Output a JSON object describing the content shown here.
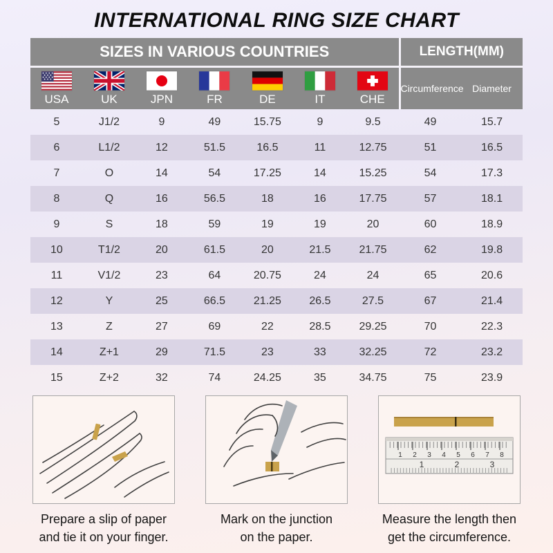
{
  "page": {
    "title": "INTERNATIONAL RING SIZE CHART"
  },
  "colors": {
    "header_bg": "#8a8a8a",
    "alt_row_bg": "#dad4e5",
    "paper_slip_gold": "#c9a24b"
  },
  "table": {
    "section_headers": {
      "sizes": "SIZES IN VARIOUS COUNTRIES",
      "length": "LENGTH(MM)"
    },
    "countries": [
      {
        "code": "USA",
        "flag_icon": "usa-flag-icon"
      },
      {
        "code": "UK",
        "flag_icon": "uk-flag-icon"
      },
      {
        "code": "JPN",
        "flag_icon": "japan-flag-icon"
      },
      {
        "code": "FR",
        "flag_icon": "france-flag-icon"
      },
      {
        "code": "DE",
        "flag_icon": "germany-flag-icon"
      },
      {
        "code": "IT",
        "flag_icon": "italy-flag-icon"
      },
      {
        "code": "CHE",
        "flag_icon": "switzerland-flag-icon"
      }
    ],
    "length_columns": [
      "Circumference",
      "Diameter"
    ]
  },
  "chart_data": {
    "type": "table",
    "title": "INTERNATIONAL RING SIZE CHART",
    "columns": [
      "USA",
      "UK",
      "JPN",
      "FR",
      "DE",
      "IT",
      "CHE",
      "Circumference",
      "Diameter"
    ],
    "rows": [
      [
        "5",
        "J1/2",
        "9",
        "49",
        "15.75",
        "9",
        "9.5",
        "49",
        "15.7"
      ],
      [
        "6",
        "L1/2",
        "12",
        "51.5",
        "16.5",
        "11",
        "12.75",
        "51",
        "16.5"
      ],
      [
        "7",
        "O",
        "14",
        "54",
        "17.25",
        "14",
        "15.25",
        "54",
        "17.3"
      ],
      [
        "8",
        "Q",
        "16",
        "56.5",
        "18",
        "16",
        "17.75",
        "57",
        "18.1"
      ],
      [
        "9",
        "S",
        "18",
        "59",
        "19",
        "19",
        "20",
        "60",
        "18.9"
      ],
      [
        "10",
        "T1/2",
        "20",
        "61.5",
        "20",
        "21.5",
        "21.75",
        "62",
        "19.8"
      ],
      [
        "11",
        "V1/2",
        "23",
        "64",
        "20.75",
        "24",
        "24",
        "65",
        "20.6"
      ],
      [
        "12",
        "Y",
        "25",
        "66.5",
        "21.25",
        "26.5",
        "27.5",
        "67",
        "21.4"
      ],
      [
        "13",
        "Z",
        "27",
        "69",
        "22",
        "28.5",
        "29.25",
        "70",
        "22.3"
      ],
      [
        "14",
        "Z+1",
        "29",
        "71.5",
        "23",
        "33",
        "32.25",
        "72",
        "23.2"
      ],
      [
        "15",
        "Z+2",
        "32",
        "74",
        "24.25",
        "35",
        "34.75",
        "75",
        "23.9"
      ]
    ]
  },
  "instructions": {
    "steps": [
      {
        "illustration": "hand-with-paper-slip",
        "line1": "Prepare a slip of paper",
        "line2": "and tie it on your finger."
      },
      {
        "illustration": "mark-junction-pen",
        "line1": "Mark on the junction",
        "line2": "on the paper."
      },
      {
        "illustration": "ruler-measure-strip",
        "line1": "Measure the length then",
        "line2": "get the circumference."
      }
    ]
  }
}
